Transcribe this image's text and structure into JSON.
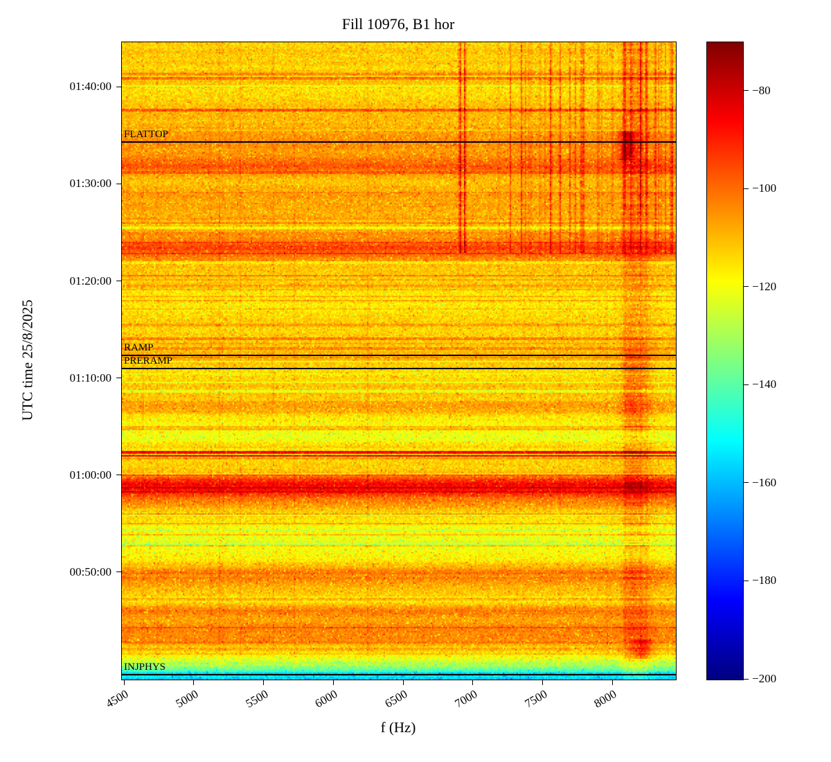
{
  "chart_data": {
    "type": "heatmap",
    "title": "Fill 10976, B1 hor",
    "xlabel": "f (Hz)",
    "ylabel": "UTC time 25/8/2025",
    "x_range": [
      4480,
      8450
    ],
    "x_ticks": [
      4500,
      5000,
      5500,
      6000,
      6500,
      7000,
      7500,
      8000
    ],
    "y_range": [
      "00:39:00",
      "01:44:40"
    ],
    "y_ticks": [
      "01:40:00",
      "01:30:00",
      "01:20:00",
      "01:10:00",
      "01:00:00",
      "00:50:00"
    ],
    "colorbar": {
      "ticks": [
        -80,
        -100,
        -120,
        -140,
        -160,
        -180,
        -200
      ],
      "vmin": -200,
      "vmax": -70,
      "colormap": "jet",
      "colormap_stops": [
        "#800000",
        "#ff0000",
        "#ffff00",
        "#00ffff",
        "#0000ff",
        "#000080"
      ]
    },
    "annotations": [
      {
        "label": "FLATTOP",
        "time": "01:34:25"
      },
      {
        "label": "RAMP",
        "time": "01:12:25"
      },
      {
        "label": "PRERAMP",
        "time": "01:11:05"
      },
      {
        "label": "INJPHYS",
        "time": "00:39:30"
      }
    ],
    "time_profile_db": [
      [
        "01:44:40",
        -113
      ],
      [
        "01:42:00",
        -114
      ],
      [
        "01:40:50",
        -109
      ],
      [
        "01:40:00",
        -113
      ],
      [
        "01:38:30",
        -113
      ],
      [
        "01:36:50",
        -108
      ],
      [
        "01:35:10",
        -106
      ],
      [
        "01:34:20",
        -105
      ],
      [
        "01:33:20",
        -108
      ],
      [
        "01:31:50",
        -97
      ],
      [
        "01:31:20",
        -106
      ],
      [
        "01:30:00",
        -110
      ],
      [
        "01:28:00",
        -108
      ],
      [
        "01:26:00",
        -109
      ],
      [
        "01:24:30",
        -102
      ],
      [
        "01:23:30",
        -92
      ],
      [
        "01:22:40",
        -100
      ],
      [
        "01:21:40",
        -112
      ],
      [
        "01:18:00",
        -114
      ],
      [
        "01:15:00",
        -112
      ],
      [
        "01:12:30",
        -108
      ],
      [
        "01:11:00",
        -112
      ],
      [
        "01:08:30",
        -108
      ],
      [
        "01:07:00",
        -110
      ],
      [
        "01:05:30",
        -115
      ],
      [
        "01:04:00",
        -118
      ],
      [
        "01:02:40",
        -114
      ],
      [
        "01:01:30",
        -113
      ],
      [
        "01:00:20",
        -107
      ],
      [
        "00:59:20",
        -84
      ],
      [
        "00:58:30",
        -87
      ],
      [
        "00:57:40",
        -101
      ],
      [
        "00:56:30",
        -113
      ],
      [
        "00:55:00",
        -118
      ],
      [
        "00:53:00",
        -120
      ],
      [
        "00:51:30",
        -117
      ],
      [
        "00:50:10",
        -104
      ],
      [
        "00:49:40",
        -103
      ],
      [
        "00:48:30",
        -113
      ],
      [
        "00:47:10",
        -118
      ],
      [
        "00:46:00",
        -102
      ],
      [
        "00:45:00",
        -108
      ],
      [
        "00:44:00",
        -104
      ],
      [
        "00:43:00",
        -107
      ],
      [
        "00:42:00",
        -115
      ],
      [
        "00:41:00",
        -125
      ],
      [
        "00:40:10",
        -135
      ],
      [
        "00:39:40",
        -149
      ],
      [
        "00:39:00",
        -157
      ]
    ],
    "features": {
      "seed": 20250825,
      "noise_db": 9,
      "speckle": {
        "low_prob": 0.05,
        "low_extra": [
          6,
          14
        ],
        "high_prob": 0.05,
        "high_extra": [
          5,
          11
        ]
      },
      "row_streaks": {
        "prob": 0.13,
        "pos_frac": 0.72,
        "amp": [
          3,
          10
        ]
      },
      "vertical_line_cluster": {
        "t_min": "01:23:00",
        "f_range": [
          6850,
          8430
        ],
        "count": 42,
        "amp": [
          4,
          15
        ]
      },
      "strong_vertical_lines": {
        "t_min": "01:27:00",
        "base_frac": 0.3,
        "lines": [
          {
            "f": 8085,
            "amp": 15
          },
          {
            "f": 8200,
            "amp": 13
          },
          {
            "f": 8240,
            "amp": 10
          }
        ]
      },
      "faint_vertical_lines": {
        "count": 12,
        "f_range": [
          4520,
          8400
        ],
        "amp": [
          2.5,
          4
        ]
      },
      "right_smear": [
        {
          "f": 8180,
          "sigma": 70,
          "amp": 7
        },
        {
          "f": 8120,
          "sigma": 30,
          "amp": 4
        }
      ],
      "blobs": [
        {
          "f": 8100,
          "sigma": 45,
          "t_range": [
            "01:32:30",
            "01:35:30"
          ],
          "amp": 18
        },
        {
          "f": 8210,
          "sigma": 45,
          "t_range": [
            "00:41:10",
            "00:43:10"
          ],
          "amp": 13
        },
        {
          "f": 8150,
          "sigma": 80,
          "t_range": [
            "01:05:00",
            "01:13:00"
          ],
          "amp": 5
        }
      ],
      "dark_rows": [
        {
          "t": "01:02:25",
          "half_s": 5,
          "amp": 26
        },
        {
          "t": "01:02:00",
          "half_s": 5,
          "amp": 26
        },
        {
          "t": "01:37:40",
          "half_s": 5,
          "amp": 13
        }
      ]
    }
  }
}
